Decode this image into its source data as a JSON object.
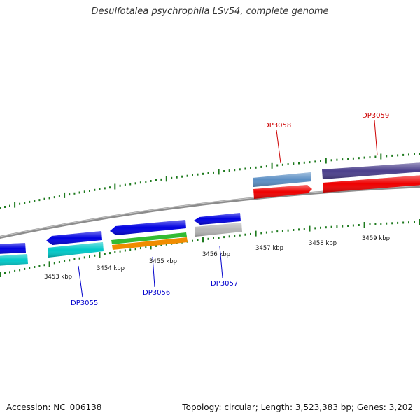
{
  "title": "Desulfotalea psychrophila LSv54, complete genome",
  "footer": {
    "accession": "Accession: NC_006138",
    "info": "Topology: circular; Length: 3,523,383 bp; Genes: 3,202"
  },
  "colors": {
    "backbone": "#8c8c8c",
    "tick": "#1e7a1e",
    "label_forward": "#cc0000",
    "label_reverse": "#0000cc"
  },
  "scale": {
    "unit": "kbp",
    "labels": [
      "3453 kbp",
      "3454 kbp",
      "3455 kbp",
      "3456 kbp",
      "3457 kbp",
      "3458 kbp",
      "3459 kbp"
    ]
  },
  "gene_labels": {
    "forward": [
      "DP3058",
      "DP3059"
    ],
    "reverse": [
      "DP3055",
      "DP3056",
      "DP3057"
    ]
  },
  "features": [
    {
      "name": "gene-reverse-partial",
      "strand": "reverse",
      "color": "#0000e0"
    },
    {
      "name": "feature-reverse-partial",
      "strand": "reverse",
      "color": "#00c8c8"
    },
    {
      "name": "gene-DP3055",
      "strand": "reverse",
      "color": "#0000e0"
    },
    {
      "name": "feature-DP3055",
      "strand": "reverse",
      "color": "#00c8c8"
    },
    {
      "name": "gene-DP3056",
      "strand": "reverse",
      "color": "#0000e0"
    },
    {
      "name": "feature-DP3056-a",
      "strand": "reverse",
      "color": "#33bb33"
    },
    {
      "name": "feature-DP3056-b",
      "strand": "reverse",
      "color": "#f08c00"
    },
    {
      "name": "gene-DP3057",
      "strand": "reverse",
      "color": "#0000e0"
    },
    {
      "name": "feature-DP3057",
      "strand": "reverse",
      "color": "#b4b4b4"
    },
    {
      "name": "feature-DP3058",
      "strand": "forward",
      "color": "#5b8fc4"
    },
    {
      "name": "gene-DP3058",
      "strand": "forward",
      "color": "#ee0000"
    },
    {
      "name": "feature-DP3059",
      "strand": "forward",
      "color": "#4b3f8c"
    },
    {
      "name": "gene-DP3059",
      "strand": "forward",
      "color": "#ee0000"
    }
  ]
}
